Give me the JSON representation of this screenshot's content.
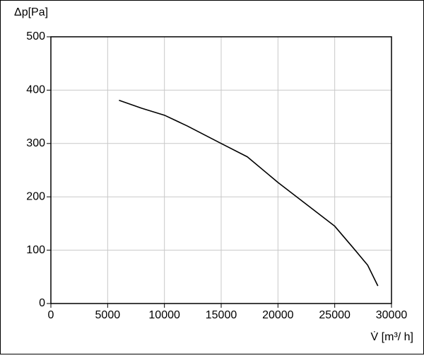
{
  "chart_data": {
    "type": "line",
    "ylabel": "Δp[Pa]",
    "xlabel": "V̇ [m³/ h]",
    "x": [
      6000,
      8000,
      10000,
      12000,
      15000,
      17300,
      20000,
      22500,
      25000,
      26600,
      27900,
      28800
    ],
    "values": [
      381,
      366,
      353,
      333,
      300,
      275,
      227,
      186,
      145,
      105,
      72,
      33
    ],
    "color": "#000000",
    "xlim": [
      0,
      30000
    ],
    "xticks": [
      0,
      5000,
      10000,
      15000,
      20000,
      25000,
      30000
    ],
    "ylim": [
      0,
      500
    ],
    "yticks": [
      0,
      100,
      200,
      300,
      400,
      500
    ],
    "grid": true
  }
}
